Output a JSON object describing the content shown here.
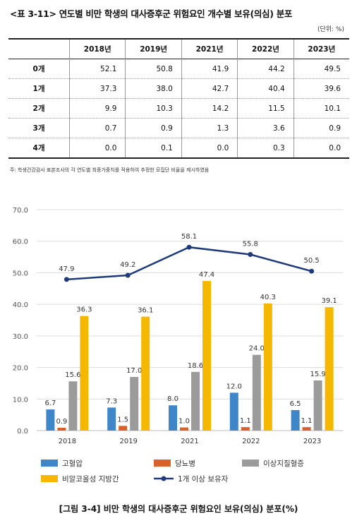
{
  "table": {
    "title": "<표 3-11> 연도별 비만 학생의 대사증후군 위험요인 개수별 보유(의심) 분포",
    "unit": "(단위: %)",
    "corner": "",
    "columns": [
      "2018년",
      "2019년",
      "2021년",
      "2022년",
      "2023년"
    ],
    "rows": [
      {
        "label": "0개",
        "values": [
          "52.1",
          "50.8",
          "41.9",
          "44.2",
          "49.5"
        ]
      },
      {
        "label": "1개",
        "values": [
          "37.3",
          "38.0",
          "42.7",
          "40.4",
          "39.6"
        ]
      },
      {
        "label": "2개",
        "values": [
          "9.9",
          "10.3",
          "14.2",
          "11.5",
          "10.1"
        ]
      },
      {
        "label": "3개",
        "values": [
          "0.7",
          "0.9",
          "1.3",
          "3.6",
          "0.9"
        ]
      },
      {
        "label": "4개",
        "values": [
          "0.0",
          "0.1",
          "0.0",
          "0.3",
          "0.0"
        ]
      }
    ],
    "note": "주: 학생건강검사 표본조사의 각 연도별 최종가중치를 적용하여 추정한 모집단 비율을 제시하였음"
  },
  "chart_data": {
    "type": "bar",
    "title": "",
    "xlabel": "",
    "ylabel": "",
    "categories": [
      "2018",
      "2019",
      "2021",
      "2022",
      "2023"
    ],
    "ylim": [
      0,
      70
    ],
    "yticks": [
      "0.0",
      "10.0",
      "20.0",
      "30.0",
      "40.0",
      "50.0",
      "60.0",
      "70.0"
    ],
    "grid": true,
    "legend_position": "bottom",
    "series": [
      {
        "name": "고혈압",
        "kind": "bar",
        "color": "#3f86c8",
        "values": [
          6.7,
          7.3,
          8.0,
          12.0,
          6.5
        ],
        "labels": [
          "6.7",
          "7.3",
          "8.0",
          "12.0",
          "6.5"
        ]
      },
      {
        "name": "당뇨병",
        "kind": "bar",
        "color": "#d9622b",
        "values": [
          0.9,
          1.5,
          1.0,
          1.1,
          1.1
        ],
        "labels": [
          "0.9",
          "1.5",
          "1.0",
          "1.1",
          "1.1"
        ]
      },
      {
        "name": "이상지질혈증",
        "kind": "bar",
        "color": "#9b9b9b",
        "values": [
          15.6,
          17.0,
          18.6,
          24.0,
          15.9
        ],
        "labels": [
          "15.6",
          "17.0",
          "18.6",
          "24.0",
          "15.9"
        ]
      },
      {
        "name": "비알코올성 지방간",
        "kind": "bar",
        "color": "#f4b800",
        "values": [
          36.3,
          36.1,
          47.4,
          40.3,
          39.1
        ],
        "labels": [
          "36.3",
          "36.1",
          "47.4",
          "40.3",
          "39.1"
        ]
      },
      {
        "name": "1개 이상 보유자",
        "kind": "line",
        "color": "#1f3a7a",
        "values": [
          47.9,
          49.2,
          58.1,
          55.8,
          50.5
        ],
        "labels": [
          "47.9",
          "49.2",
          "58.1",
          "55.8",
          "50.5"
        ]
      }
    ]
  },
  "caption": "[그림 3-4] 비만 학생의 대사증후군 위험요인 보유(의심) 분포(%)"
}
